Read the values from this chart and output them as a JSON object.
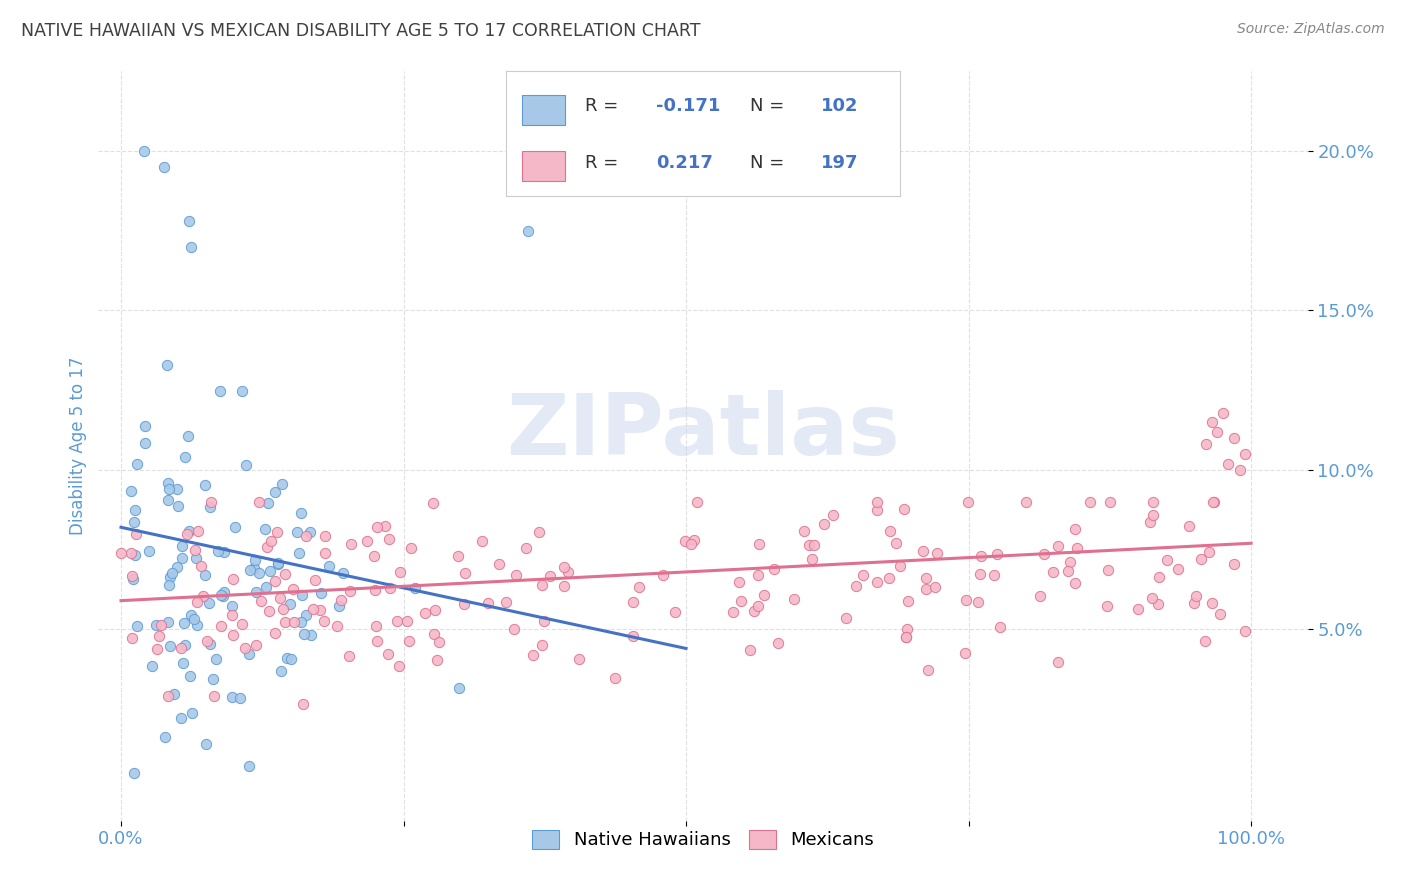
{
  "title": "NATIVE HAWAIIAN VS MEXICAN DISABILITY AGE 5 TO 17 CORRELATION CHART",
  "source": "Source: ZipAtlas.com",
  "ylabel": "Disability Age 5 to 17",
  "color_blue": "#a8c8e8",
  "color_blue_edge": "#5b9bd5",
  "color_pink": "#f4b8c8",
  "color_pink_edge": "#e07090",
  "line_color_blue": "#4472c4",
  "line_color_pink": "#e07090",
  "watermark": "ZIPatlas",
  "watermark_color": "#ccd9ee",
  "background_color": "#ffffff",
  "grid_color": "#e0e0e0",
  "title_color": "#404040",
  "axis_tick_color": "#5b9bd5",
  "legend_text_color": "#4472c4",
  "xlim": [
    -0.02,
    1.05
  ],
  "ylim": [
    -0.01,
    0.225
  ],
  "yticks": [
    0.05,
    0.1,
    0.15,
    0.2
  ],
  "ytick_labels": [
    "5.0%",
    "10.0%",
    "15.0%",
    "20.0%"
  ],
  "xtick_left_label": "0.0%",
  "xtick_right_label": "100.0%",
  "legend_r1": "-0.171",
  "legend_n1": "102",
  "legend_r2": "0.217",
  "legend_n2": "197",
  "nh_line_x": [
    0.0,
    0.5
  ],
  "nh_line_y": [
    0.082,
    0.044
  ],
  "mx_line_x": [
    0.0,
    1.0
  ],
  "mx_line_y": [
    0.059,
    0.077
  ]
}
